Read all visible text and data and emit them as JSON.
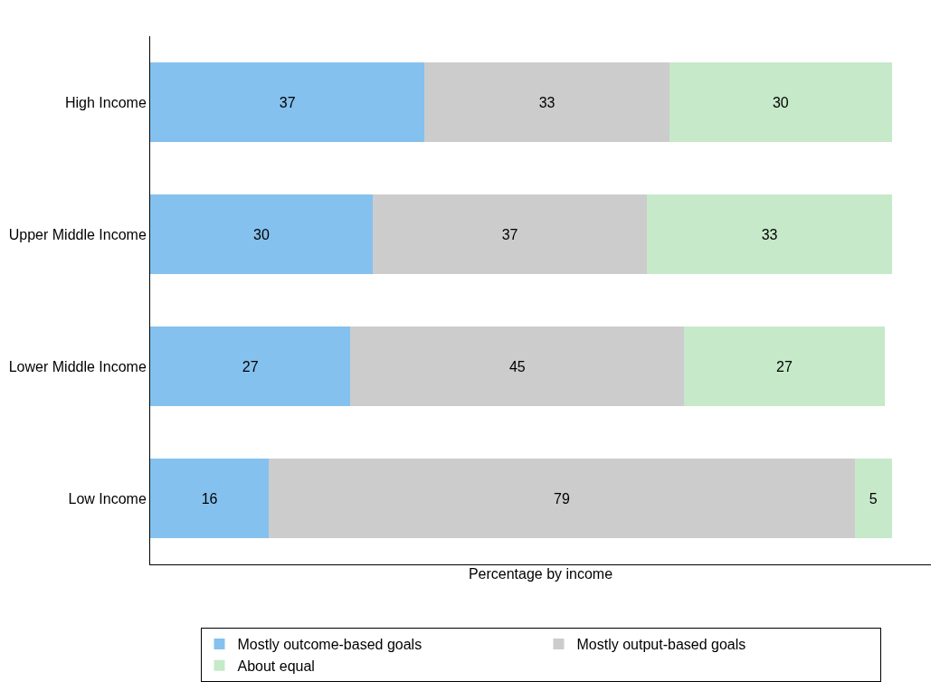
{
  "chart_data": {
    "type": "bar",
    "orientation": "horizontal",
    "stacked": true,
    "xlabel": "Percentage by income",
    "categories": [
      "High Income",
      "Upper Middle Income",
      "Lower Middle Income",
      "Low Income"
    ],
    "series": [
      {
        "name": "Mostly outcome-based goals",
        "color": "#85c1ee",
        "values": [
          37,
          30,
          27,
          16
        ]
      },
      {
        "name": "Mostly output-based goals",
        "color": "#cccccc",
        "values": [
          33,
          37,
          45,
          79
        ]
      },
      {
        "name": "About equal",
        "color": "#c6e9c9",
        "values": [
          30,
          33,
          27,
          5
        ]
      }
    ],
    "data_labels": true,
    "tick_labels": "y",
    "legend": "bottom"
  }
}
